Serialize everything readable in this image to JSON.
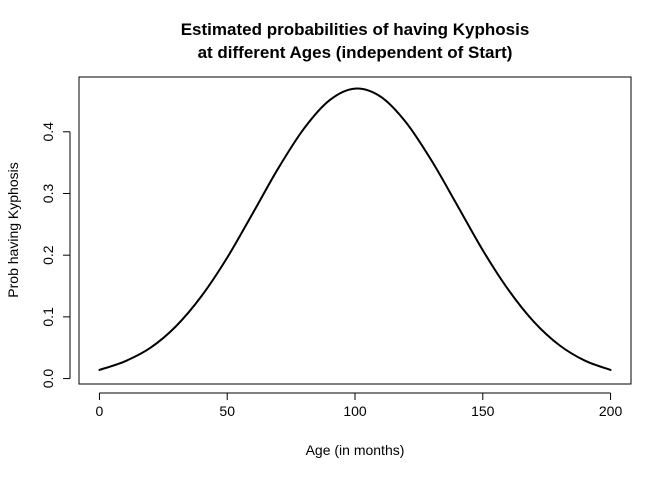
{
  "chart_data": {
    "type": "line",
    "title_line1": "Estimated probabilities of having Kyphosis",
    "title_line2": "at different Ages (independent of Start)",
    "xlabel": "Age (in months)",
    "ylabel": "Prob having Kyphosis",
    "xlim": [
      -8,
      208
    ],
    "ylim": [
      -0.0088,
      0.4888
    ],
    "x_ticks": [
      0,
      50,
      100,
      150,
      200
    ],
    "y_ticks": [
      0.0,
      0.1,
      0.2,
      0.3,
      0.4
    ],
    "x_tick_labels": [
      "0",
      "50",
      "100",
      "150",
      "200"
    ],
    "y_tick_labels": [
      "0.0",
      "0.1",
      "0.2",
      "0.3",
      "0.4"
    ],
    "grid": false,
    "line_color": "#000000",
    "series": [
      {
        "x": [
          0,
          10,
          20,
          30,
          40,
          50,
          60,
          70,
          80,
          90,
          100,
          110,
          120,
          130,
          140,
          150,
          160,
          170,
          180,
          190,
          200
        ],
        "values": [
          0.014,
          0.028,
          0.05,
          0.085,
          0.134,
          0.196,
          0.268,
          0.341,
          0.405,
          0.451,
          0.47,
          0.457,
          0.415,
          0.353,
          0.281,
          0.208,
          0.144,
          0.092,
          0.054,
          0.029,
          0.014
        ]
      }
    ]
  }
}
